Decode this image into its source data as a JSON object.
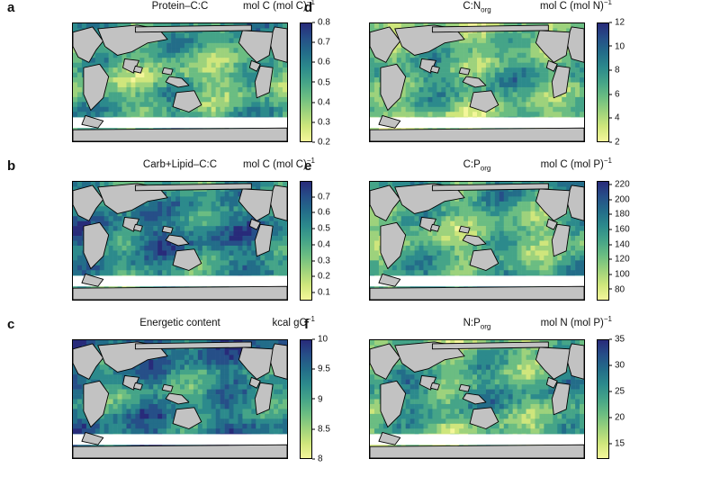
{
  "colormap": [
    "#f4f69a",
    "#cfe67c",
    "#9dd27c",
    "#6bbd82",
    "#45a488",
    "#2c8a8c",
    "#236d89",
    "#264f88",
    "#282b7a"
  ],
  "land_color": "#c2c2c2",
  "panels": [
    {
      "letter": "a",
      "title": "Protein–C:C",
      "unit_main": "mol C (mol C)",
      "unit_sup": "−1",
      "ticks": [
        "0.8",
        "0.7",
        "0.6",
        "0.5",
        "0.4",
        "0.3",
        "0.2"
      ],
      "range": [
        0.2,
        0.8
      ],
      "mean_level": 0.45
    },
    {
      "letter": "b",
      "title": "Carb+Lipid–C:C",
      "unit_main": "mol C (mol C)",
      "unit_sup": "−1",
      "ticks": [
        "0.7",
        "0.6",
        "0.5",
        "0.4",
        "0.3",
        "0.2",
        "0.1"
      ],
      "range": [
        0.05,
        0.8
      ],
      "mean_level": 0.62
    },
    {
      "letter": "c",
      "title": "Energetic content",
      "unit_main": "kcal gC",
      "unit_sup": "−1",
      "ticks": [
        "10",
        "9.5",
        "9",
        "8.5",
        "8"
      ],
      "range": [
        8,
        10
      ],
      "mean_level": 0.65
    },
    {
      "letter": "d",
      "title_pre": "C:N",
      "title_sub": "org",
      "unit_main": "mol C (mol N)",
      "unit_sup": "−1",
      "ticks": [
        "12",
        "10",
        "8",
        "6",
        "4",
        "2"
      ],
      "range": [
        2,
        12
      ],
      "mean_level": 0.4
    },
    {
      "letter": "e",
      "title_pre": "C:P",
      "title_sub": "org",
      "unit_main": "mol C (mol P)",
      "unit_sup": "−1",
      "ticks": [
        "220",
        "200",
        "180",
        "160",
        "140",
        "120",
        "100",
        "80"
      ],
      "range": [
        65,
        225
      ],
      "mean_level": 0.45
    },
    {
      "letter": "f",
      "title_pre": "N:P",
      "title_sub": "org",
      "unit_main": "mol N (mol P)",
      "unit_sup": "−1",
      "ticks": [
        "35",
        "30",
        "25",
        "20",
        "15"
      ],
      "range": [
        12,
        35
      ],
      "mean_level": 0.45
    }
  ]
}
